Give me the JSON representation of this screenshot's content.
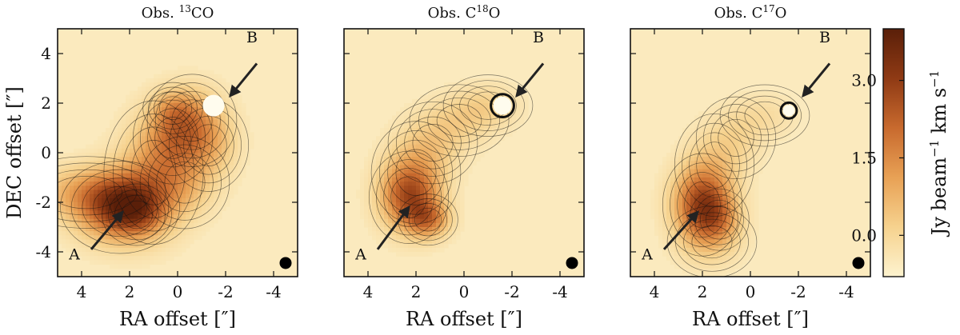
{
  "chart_data": {
    "type": "heatmap",
    "xlabel": "RA offset [″]",
    "ylabel": "DEC offset [″]",
    "xlim": [
      5,
      -5
    ],
    "ylim": [
      -5,
      5
    ],
    "x_ticks": [
      "4",
      "2",
      "0",
      "-2",
      "-4"
    ],
    "x_tick_values": [
      4,
      2,
      0,
      -2,
      -4
    ],
    "y_ticks": [
      "4",
      "2",
      "0",
      "-2",
      "-4"
    ],
    "y_tick_values": [
      4,
      2,
      0,
      -2,
      -4
    ],
    "colorbar": {
      "label": "Jy beam−1 km s−1",
      "range": [
        -0.8,
        4.0
      ],
      "tick_labels": [
        "0.0",
        "1.5",
        "3.0"
      ],
      "tick_values": [
        0.0,
        1.5,
        3.0
      ],
      "colors": [
        "#fdf3cf",
        "#f6d28e",
        "#e8a155",
        "#c86a2e",
        "#8f3a14",
        "#5a1f09"
      ]
    },
    "panels": [
      {
        "title_prefix": "Obs. ",
        "title_iso": "13",
        "title_suffix": "CO",
        "source_A": {
          "label": "A",
          "x": 2.3,
          "y": -2.2
        },
        "source_B": {
          "label": "B",
          "x": -1.5,
          "y": 1.9
        },
        "arrow_A": {
          "from": [
            3.6,
            -3.9
          ],
          "to": [
            2.3,
            -2.4
          ]
        },
        "arrow_B": {
          "from": [
            -3.3,
            3.6
          ],
          "to": [
            -2.2,
            2.3
          ]
        },
        "label_A_pos": [
          4.3,
          -4.3
        ],
        "label_B_pos": [
          -3.1,
          4.45
        ],
        "emission": [
          {
            "x": 2.4,
            "y": -2.2,
            "sx": 1.2,
            "sy": 0.9,
            "amp": 3.4
          },
          {
            "x": 1.7,
            "y": -2.5,
            "sx": 0.7,
            "sy": 0.6,
            "amp": 1.0
          },
          {
            "x": 3.8,
            "y": -1.6,
            "sx": 1.6,
            "sy": 0.7,
            "amp": 1.2
          },
          {
            "x": 1.0,
            "y": -0.8,
            "sx": 1.0,
            "sy": 1.4,
            "amp": 1.4
          },
          {
            "x": 0.2,
            "y": 0.6,
            "sx": 0.8,
            "sy": 0.9,
            "amp": 1.2
          },
          {
            "x": -0.6,
            "y": 1.3,
            "sx": 0.9,
            "sy": 0.9,
            "amp": 1.5
          },
          {
            "x": -1.3,
            "y": 0.3,
            "sx": 0.8,
            "sy": 0.9,
            "amp": 1.0
          },
          {
            "x": -0.3,
            "y": -1.2,
            "sx": 0.9,
            "sy": 0.9,
            "amp": 0.9
          },
          {
            "x": 0.2,
            "y": 1.8,
            "sx": 0.6,
            "sy": 0.5,
            "amp": 0.8
          }
        ],
        "hole": {
          "x": -1.5,
          "y": 1.9,
          "r": 0.45
        },
        "beam": {
          "x": -4.5,
          "y": -4.45,
          "r": 0.25
        }
      },
      {
        "title_prefix": "Obs. C",
        "title_iso": "18",
        "title_suffix": "O",
        "source_A": {
          "label": "A",
          "x": 2.2,
          "y": -2.1
        },
        "source_B": {
          "label": "B",
          "x": -1.6,
          "y": 1.9
        },
        "arrow_A": {
          "from": [
            3.6,
            -3.9
          ],
          "to": [
            2.3,
            -2.2
          ]
        },
        "arrow_B": {
          "from": [
            -3.3,
            3.6
          ],
          "to": [
            -2.2,
            2.3
          ]
        },
        "label_A_pos": [
          4.3,
          -4.3
        ],
        "label_B_pos": [
          -3.1,
          4.45
        ],
        "emission": [
          {
            "x": 2.3,
            "y": -1.8,
            "sx": 0.8,
            "sy": 0.9,
            "amp": 2.8
          },
          {
            "x": 1.5,
            "y": -2.7,
            "sx": 0.6,
            "sy": 0.5,
            "amp": 2.0
          },
          {
            "x": 2.0,
            "y": -0.8,
            "sx": 0.9,
            "sy": 1.0,
            "amp": 0.9
          },
          {
            "x": 1.3,
            "y": 0.4,
            "sx": 0.9,
            "sy": 0.8,
            "amp": 0.6
          },
          {
            "x": 0.2,
            "y": 1.3,
            "sx": 1.0,
            "sy": 0.7,
            "amp": 0.6
          },
          {
            "x": -1.0,
            "y": 1.9,
            "sx": 0.9,
            "sy": 0.6,
            "amp": 0.6
          }
        ],
        "hole": {
          "x": -1.6,
          "y": 1.9,
          "r": 0.38
        },
        "ring": {
          "x": -1.6,
          "y": 1.9,
          "r": 0.48
        },
        "beam": {
          "x": -4.5,
          "y": -4.45,
          "r": 0.25
        }
      },
      {
        "title_prefix": "Obs. C",
        "title_iso": "17",
        "title_suffix": "O",
        "source_A": {
          "label": "A",
          "x": 2.0,
          "y": -2.3
        },
        "source_B": {
          "label": "B",
          "x": -1.6,
          "y": 2.0
        },
        "arrow_A": {
          "from": [
            3.6,
            -3.9
          ],
          "to": [
            2.2,
            -2.4
          ]
        },
        "arrow_B": {
          "from": [
            -3.3,
            3.6
          ],
          "to": [
            -2.2,
            2.3
          ]
        },
        "label_A_pos": [
          4.3,
          -4.3
        ],
        "label_B_pos": [
          -3.1,
          4.45
        ],
        "emission": [
          {
            "x": 2.0,
            "y": -2.1,
            "sx": 0.8,
            "sy": 1.0,
            "amp": 3.4
          },
          {
            "x": 1.3,
            "y": -2.7,
            "sx": 0.6,
            "sy": 0.6,
            "amp": 1.0
          },
          {
            "x": 1.5,
            "y": -0.5,
            "sx": 0.8,
            "sy": 1.0,
            "amp": 0.6
          },
          {
            "x": 0.6,
            "y": 0.6,
            "sx": 0.8,
            "sy": 0.8,
            "amp": 0.5
          },
          {
            "x": -0.6,
            "y": 1.5,
            "sx": 0.9,
            "sy": 0.6,
            "amp": 0.4
          },
          {
            "x": 1.6,
            "y": -3.6,
            "sx": 0.9,
            "sy": 0.7,
            "amp": 0.5
          }
        ],
        "hole": {
          "x": -1.6,
          "y": 1.7,
          "r": 0.24
        },
        "ring": {
          "x": -1.6,
          "y": 1.7,
          "r": 0.33
        },
        "beam": {
          "x": -4.5,
          "y": -4.45,
          "r": 0.25
        }
      }
    ]
  }
}
